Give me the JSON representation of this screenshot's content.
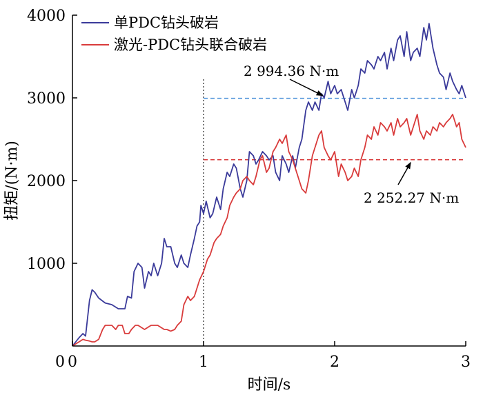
{
  "chart_data": {
    "type": "line",
    "xlabel": "时间/s",
    "ylabel": "扭矩/(N·m)",
    "xlim": [
      0,
      3
    ],
    "ylim": [
      0,
      4000
    ],
    "xticks": [
      "0",
      "1",
      "2",
      "3"
    ],
    "yticks": [
      "1000",
      "2000",
      "3000",
      "4000"
    ],
    "grid": false,
    "legend_position": "top-left",
    "series": [
      {
        "name": "单PDC钻头破岩",
        "color": "#3a3a9a",
        "x": [
          0,
          0.05,
          0.08,
          0.1,
          0.13,
          0.15,
          0.17,
          0.2,
          0.25,
          0.3,
          0.35,
          0.38,
          0.4,
          0.42,
          0.45,
          0.47,
          0.5,
          0.53,
          0.55,
          0.58,
          0.6,
          0.62,
          0.65,
          0.68,
          0.7,
          0.72,
          0.75,
          0.78,
          0.8,
          0.83,
          0.85,
          0.88,
          0.9,
          0.93,
          0.95,
          0.97,
          0.98,
          1.0,
          1.02,
          1.05,
          1.07,
          1.1,
          1.13,
          1.15,
          1.18,
          1.2,
          1.23,
          1.25,
          1.28,
          1.3,
          1.33,
          1.35,
          1.38,
          1.4,
          1.42,
          1.45,
          1.48,
          1.5,
          1.53,
          1.55,
          1.58,
          1.6,
          1.63,
          1.65,
          1.68,
          1.7,
          1.73,
          1.75,
          1.78,
          1.8,
          1.83,
          1.85,
          1.88,
          1.9,
          1.92,
          1.95,
          1.97,
          2.0,
          2.02,
          2.05,
          2.07,
          2.1,
          2.13,
          2.15,
          2.18,
          2.2,
          2.23,
          2.25,
          2.28,
          2.3,
          2.33,
          2.35,
          2.38,
          2.4,
          2.43,
          2.45,
          2.48,
          2.5,
          2.53,
          2.55,
          2.58,
          2.6,
          2.63,
          2.65,
          2.68,
          2.7,
          2.72,
          2.75,
          2.78,
          2.8,
          2.83,
          2.85,
          2.88,
          2.9,
          2.93,
          2.95,
          2.97,
          3.0
        ],
        "y": [
          0,
          100,
          150,
          120,
          550,
          680,
          650,
          580,
          520,
          500,
          450,
          450,
          450,
          600,
          580,
          900,
          1000,
          950,
          700,
          900,
          850,
          1000,
          850,
          1000,
          1300,
          1200,
          1200,
          1000,
          950,
          1100,
          1000,
          950,
          1100,
          1300,
          1450,
          1500,
          1700,
          1600,
          1750,
          1550,
          1600,
          1800,
          1650,
          1900,
          2100,
          2050,
          2200,
          2150,
          1900,
          1800,
          2000,
          2350,
          2300,
          2200,
          2250,
          2350,
          2300,
          2250,
          2300,
          2100,
          2000,
          2300,
          2200,
          2100,
          2300,
          2150,
          2400,
          2500,
          2850,
          2950,
          2850,
          2950,
          2850,
          3050,
          3000,
          3200,
          3050,
          3150,
          3050,
          3100,
          3000,
          2850,
          3100,
          3000,
          3150,
          3350,
          3300,
          3450,
          3400,
          3350,
          3500,
          3450,
          3550,
          3350,
          3600,
          3450,
          3700,
          3750,
          3500,
          3800,
          3450,
          3550,
          3600,
          3500,
          3850,
          3700,
          3900,
          3600,
          3400,
          3300,
          3250,
          3100,
          3300,
          3200,
          3100,
          3050,
          3150,
          3000
        ]
      },
      {
        "name": "激光-PDC钻头联合破岩",
        "color": "#d93b3b",
        "x": [
          0,
          0.05,
          0.08,
          0.1,
          0.13,
          0.15,
          0.17,
          0.2,
          0.23,
          0.25,
          0.3,
          0.33,
          0.35,
          0.38,
          0.4,
          0.43,
          0.45,
          0.48,
          0.5,
          0.55,
          0.6,
          0.65,
          0.7,
          0.72,
          0.75,
          0.78,
          0.8,
          0.83,
          0.85,
          0.88,
          0.9,
          0.93,
          0.95,
          0.97,
          1.0,
          1.03,
          1.05,
          1.08,
          1.1,
          1.13,
          1.15,
          1.18,
          1.2,
          1.23,
          1.25,
          1.28,
          1.3,
          1.33,
          1.35,
          1.38,
          1.4,
          1.43,
          1.45,
          1.48,
          1.5,
          1.53,
          1.55,
          1.58,
          1.6,
          1.63,
          1.65,
          1.68,
          1.7,
          1.73,
          1.75,
          1.78,
          1.8,
          1.83,
          1.85,
          1.88,
          1.9,
          1.92,
          1.95,
          1.97,
          2.0,
          2.03,
          2.05,
          2.08,
          2.1,
          2.13,
          2.15,
          2.18,
          2.2,
          2.23,
          2.25,
          2.28,
          2.3,
          2.33,
          2.35,
          2.38,
          2.4,
          2.43,
          2.45,
          2.48,
          2.5,
          2.53,
          2.55,
          2.58,
          2.6,
          2.63,
          2.65,
          2.68,
          2.7,
          2.73,
          2.75,
          2.78,
          2.8,
          2.83,
          2.85,
          2.88,
          2.9,
          2.93,
          2.95,
          2.97,
          3.0
        ],
        "y": [
          0,
          50,
          80,
          70,
          60,
          50,
          50,
          80,
          200,
          250,
          250,
          200,
          250,
          250,
          150,
          150,
          200,
          250,
          250,
          200,
          250,
          250,
          200,
          200,
          180,
          200,
          250,
          300,
          500,
          600,
          550,
          600,
          700,
          800,
          900,
          1050,
          1100,
          1250,
          1300,
          1350,
          1450,
          1550,
          1700,
          1800,
          1850,
          1900,
          2000,
          2050,
          2000,
          1950,
          2050,
          2250,
          2300,
          2100,
          2150,
          2350,
          2400,
          2500,
          2450,
          2550,
          2350,
          2250,
          2150,
          2000,
          1900,
          1850,
          2000,
          2300,
          2400,
          2550,
          2600,
          2400,
          2300,
          2250,
          2350,
          2050,
          2200,
          2100,
          2000,
          2050,
          2150,
          2050,
          2250,
          2400,
          2550,
          2500,
          2650,
          2550,
          2700,
          2650,
          2600,
          2700,
          2550,
          2750,
          2650,
          2700,
          2750,
          2550,
          2650,
          2800,
          2600,
          2500,
          2600,
          2550,
          2650,
          2600,
          2700,
          2650,
          2700,
          2750,
          2800,
          2650,
          2700,
          2500,
          2400
        ]
      }
    ],
    "reference_lines": [
      {
        "type": "vertical",
        "x": 1,
        "color": "#333333"
      },
      {
        "type": "horizontal",
        "y": 2994.36,
        "x_start": 1,
        "x_end": 3,
        "color": "#4a90d9"
      },
      {
        "type": "horizontal",
        "y": 2252.27,
        "x_start": 1,
        "x_end": 3,
        "color": "#d93b3b"
      }
    ],
    "annotations": [
      {
        "text": "2 994.36 N·m",
        "arrow_to": [
          1.92,
          2994.36
        ]
      },
      {
        "text": "2 252.27 N·m",
        "arrow_to": [
          2.58,
          2252.27
        ]
      }
    ]
  }
}
